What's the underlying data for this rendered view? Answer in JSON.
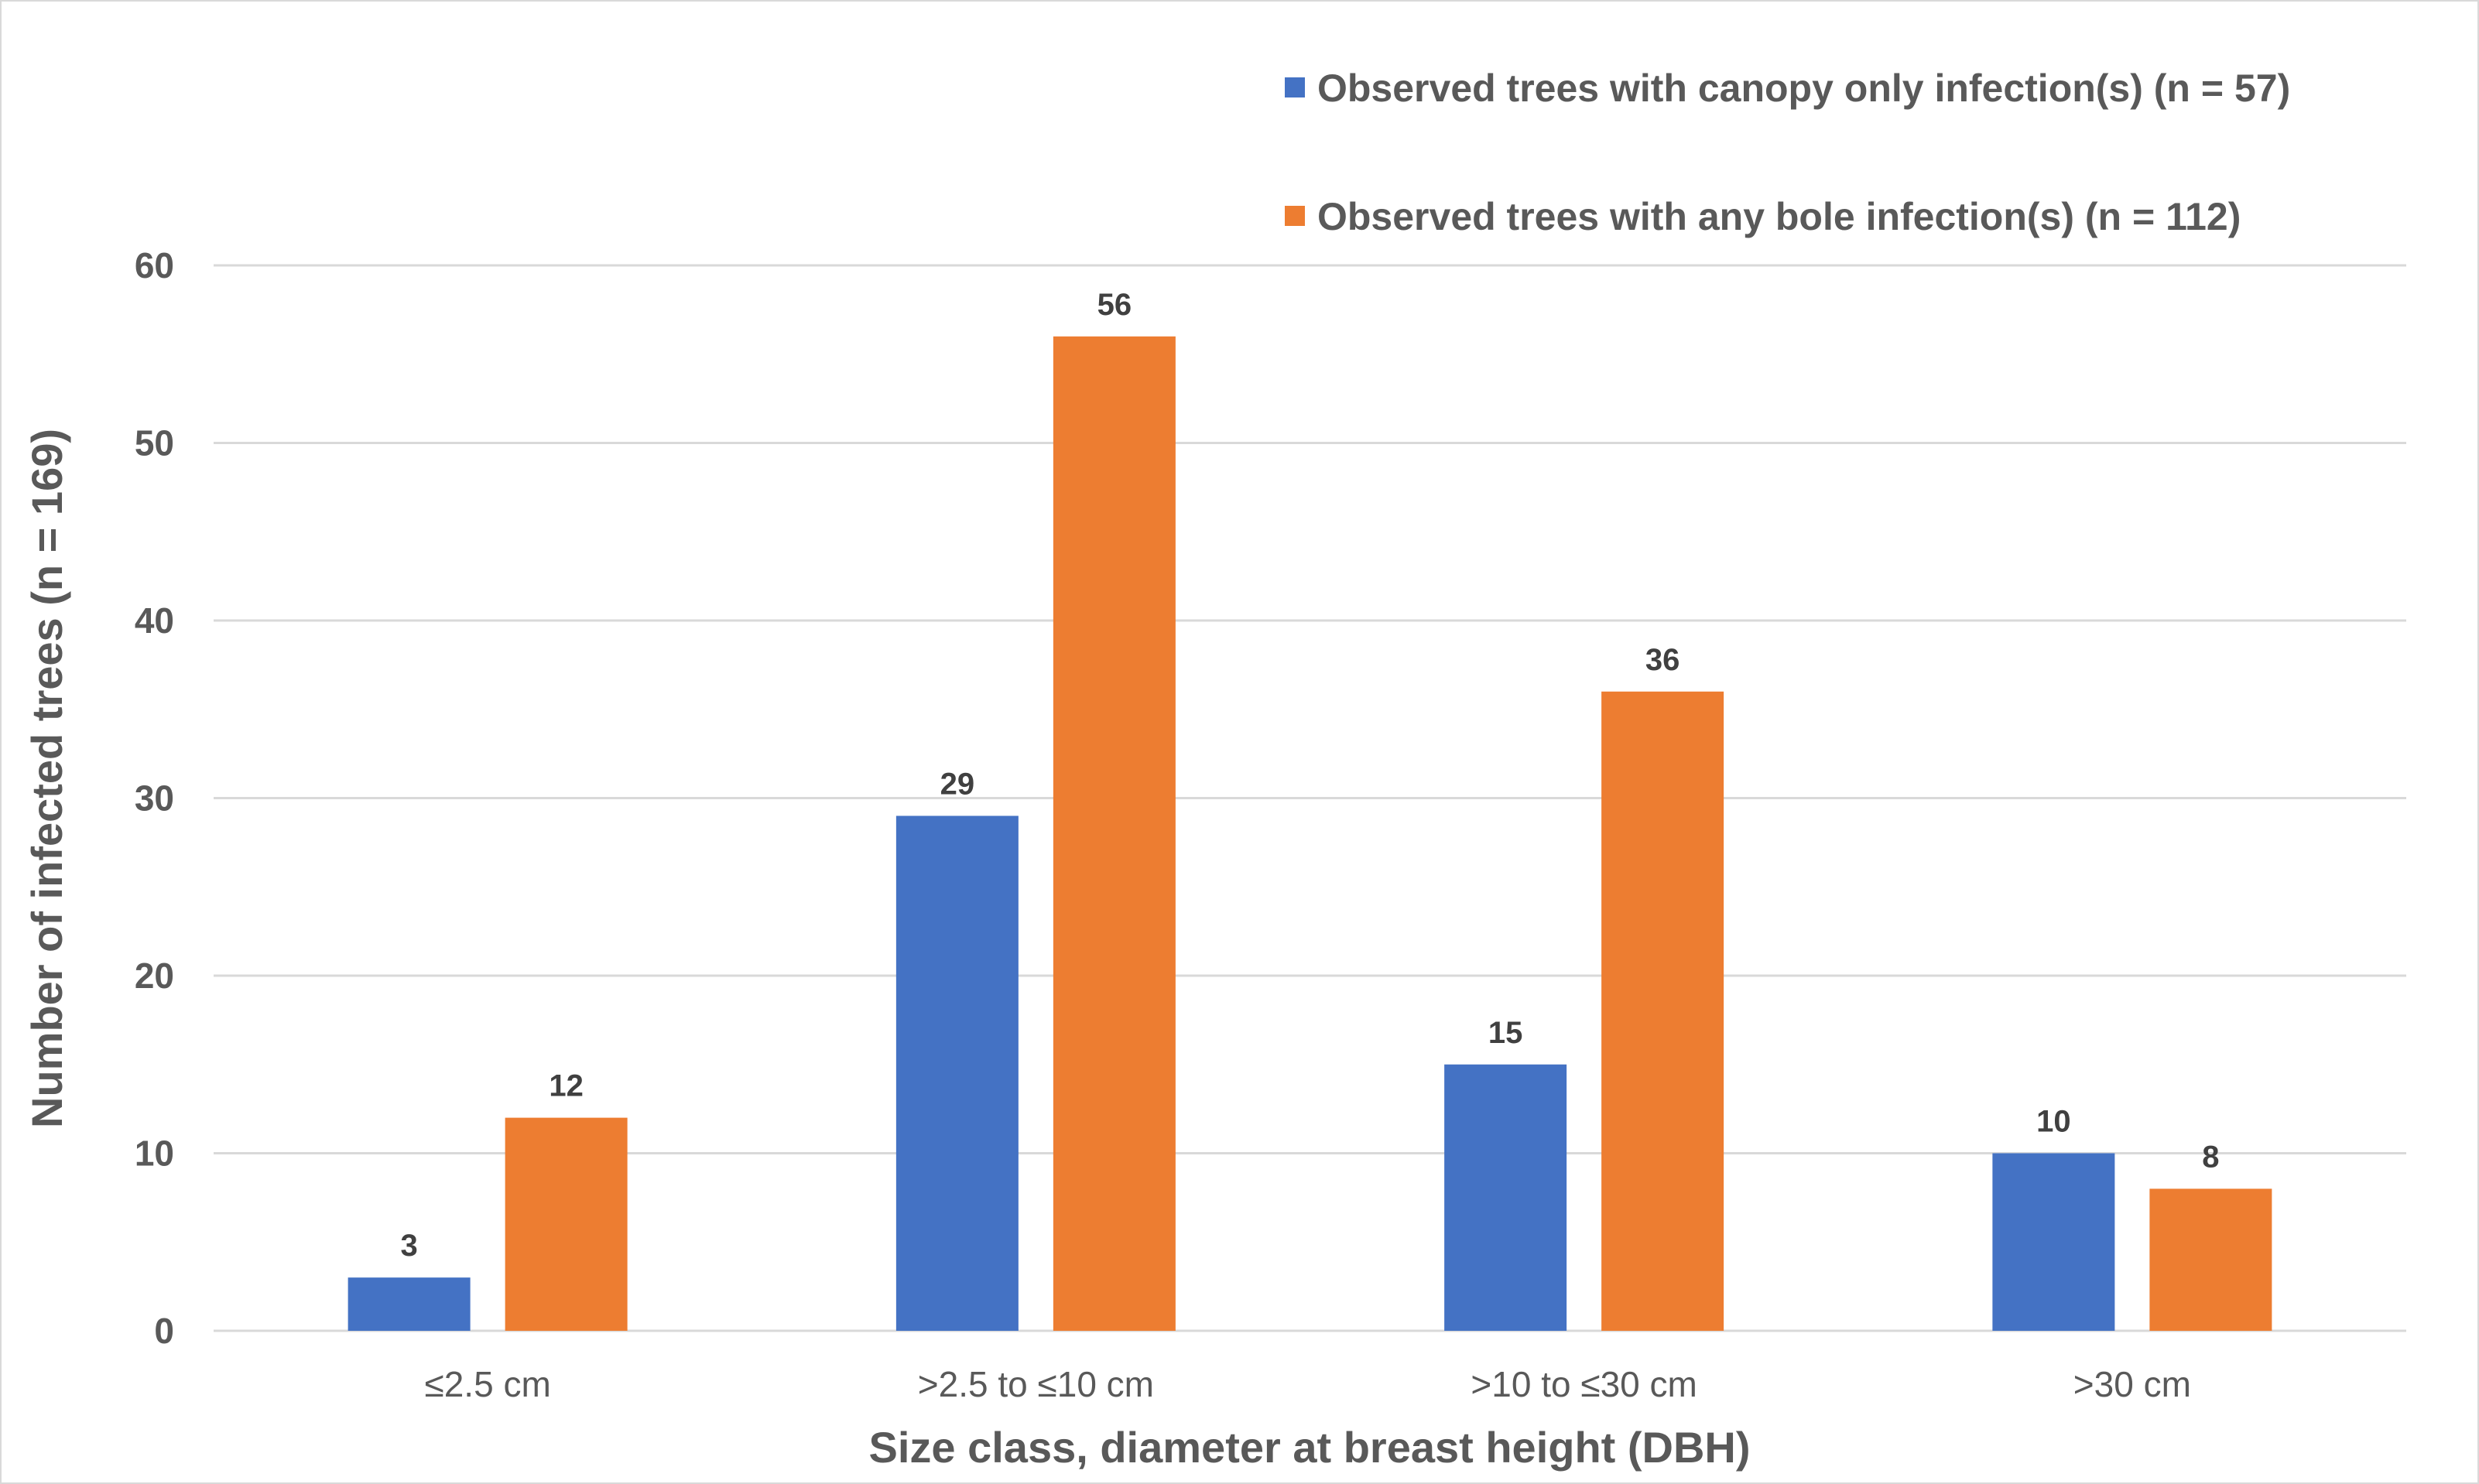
{
  "chart_data": {
    "type": "bar",
    "title": "",
    "xlabel": "Size class, diameter at breast height (DBH)",
    "ylabel": "Number of infected trees (n = 169)",
    "categories": [
      "≤2.5 cm",
      ">2.5 to ≤10 cm",
      ">10 to ≤30 cm",
      ">30 cm"
    ],
    "series": [
      {
        "name": "Observed trees with canopy only infection(s) (n = 57)",
        "values": [
          3,
          29,
          15,
          10
        ],
        "color": "#4472C4"
      },
      {
        "name": "Observed trees with any bole infection(s) (n = 112)",
        "values": [
          12,
          56,
          36,
          8
        ],
        "color": "#ED7D31"
      }
    ],
    "ylim": [
      0,
      60
    ],
    "yticks": [
      0,
      10,
      20,
      30,
      40,
      50,
      60
    ],
    "grid": true,
    "legend": "top-right",
    "data_labels": true
  }
}
